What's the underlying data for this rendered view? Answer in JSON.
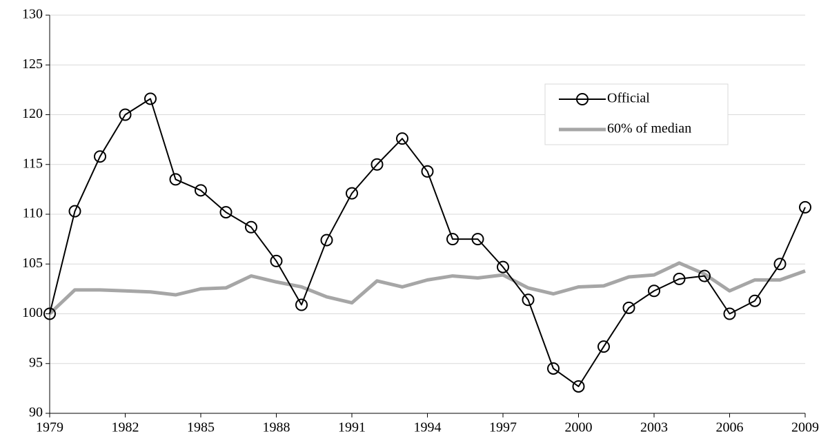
{
  "chart_data": {
    "type": "line",
    "x": [
      1979,
      1980,
      1981,
      1982,
      1983,
      1984,
      1985,
      1986,
      1987,
      1988,
      1989,
      1990,
      1991,
      1992,
      1993,
      1994,
      1995,
      1996,
      1997,
      1998,
      1999,
      2000,
      2001,
      2002,
      2003,
      2004,
      2005,
      2006,
      2007,
      2008,
      2009
    ],
    "series": [
      {
        "name": "Official",
        "color": "#000000",
        "marker": "circle",
        "values": [
          100,
          110.3,
          115.8,
          120.0,
          121.6,
          113.5,
          112.4,
          110.2,
          108.7,
          105.3,
          100.9,
          107.4,
          112.1,
          115.0,
          117.6,
          114.3,
          107.5,
          107.5,
          104.7,
          101.4,
          94.5,
          92.7,
          96.7,
          100.6,
          102.3,
          103.5,
          103.8,
          100,
          101.3,
          105.0,
          110.7
        ]
      },
      {
        "name": "60% of median",
        "color": "#a6a6a6",
        "values": [
          100,
          102.4,
          102.4,
          102.3,
          102.2,
          101.9,
          102.5,
          102.6,
          103.8,
          103.2,
          102.7,
          101.7,
          101.1,
          103.3,
          102.7,
          103.4,
          103.8,
          103.6,
          103.9,
          102.6,
          102.0,
          102.7,
          102.8,
          103.7,
          103.9,
          105.1,
          104.0,
          102.3,
          103.4,
          103.4,
          104.3
        ]
      }
    ],
    "xlim": [
      1979,
      2009
    ],
    "xticks": [
      1979,
      1982,
      1985,
      1988,
      1991,
      1994,
      1997,
      2000,
      2003,
      2006,
      2009
    ],
    "ylim": [
      90,
      130
    ],
    "yticks": [
      90,
      95,
      100,
      105,
      110,
      115,
      120,
      125,
      130
    ],
    "grid": true,
    "legend": "upper-right"
  }
}
